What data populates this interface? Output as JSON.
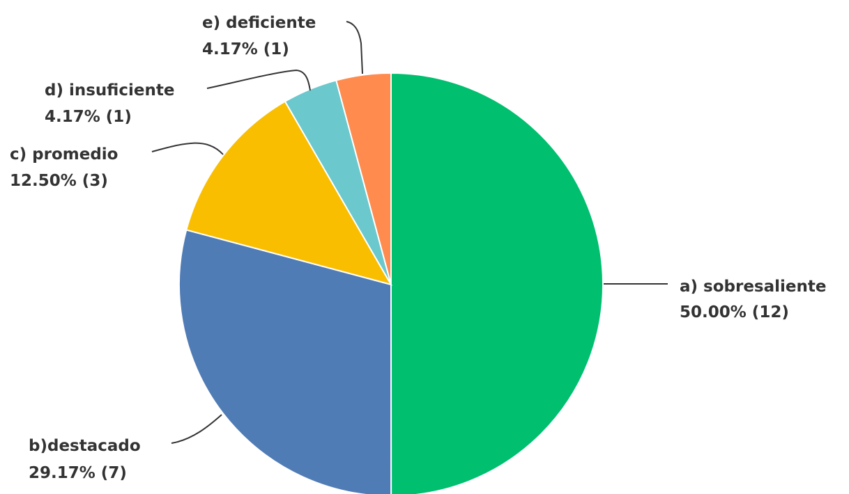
{
  "chart_data": {
    "type": "pie",
    "slices": [
      {
        "label": "a) sobresaliente",
        "value_label": "50.00% (12)",
        "percent": 50.0,
        "count": 12,
        "color": "#00BF6F"
      },
      {
        "label": "b)destacado",
        "value_label": "29.17% (7)",
        "percent": 29.17,
        "count": 7,
        "color": "#507CB6"
      },
      {
        "label": "c) promedio",
        "value_label": "12.50% (3)",
        "percent": 12.5,
        "count": 3,
        "color": "#F9BE00"
      },
      {
        "label": "d) insuficiente",
        "value_label": "4.17% (1)",
        "percent": 4.17,
        "count": 1,
        "color": "#6BC8CD"
      },
      {
        "label": "e) deficiente",
        "value_label": "4.17% (1)",
        "percent": 4.17,
        "count": 1,
        "color": "#FF8B4F"
      }
    ]
  }
}
